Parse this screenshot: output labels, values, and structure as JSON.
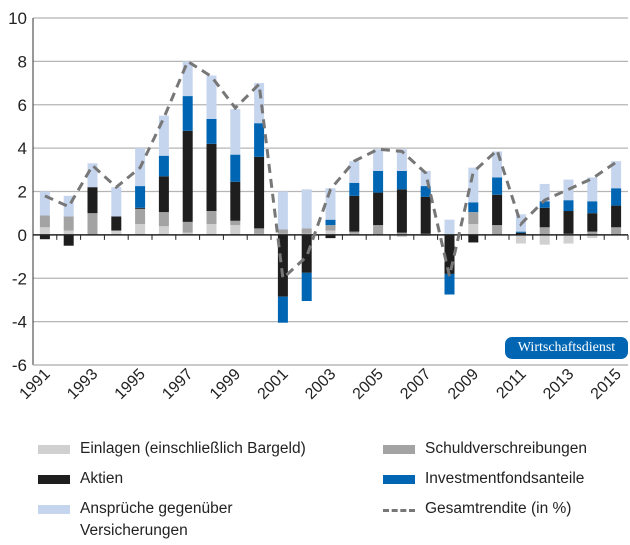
{
  "chart_data": {
    "type": "bar",
    "stacked": true,
    "categories": [
      "1991",
      "1992",
      "1993",
      "1994",
      "1995",
      "1996",
      "1997",
      "1998",
      "1999",
      "2000",
      "2001",
      "2002",
      "2003",
      "2004",
      "2005",
      "2006",
      "2007",
      "2008",
      "2009",
      "2010",
      "2011",
      "2012",
      "2013",
      "2014",
      "2015"
    ],
    "xtick_labels": [
      "1991",
      "1993",
      "1995",
      "1997",
      "1999",
      "2001",
      "2003",
      "2005",
      "2007",
      "2009",
      "2011",
      "2013",
      "2015"
    ],
    "ylim": [
      -6,
      10
    ],
    "yticks": [
      -6,
      -4,
      -2,
      0,
      2,
      4,
      6,
      8,
      10
    ],
    "grid": true,
    "legend_position": "bottom",
    "series": [
      {
        "name": "Einlagen (einschließlich Bargeld)",
        "color": "#d0d0d0",
        "values": [
          0.35,
          0.2,
          0,
          0.2,
          0.5,
          0.4,
          0.1,
          0.5,
          0.45,
          0.05,
          0.05,
          0.05,
          0.2,
          0.05,
          0,
          -0.1,
          -0.05,
          0,
          0.5,
          0,
          -0.4,
          -0.45,
          -0.4,
          -0.15,
          0
        ]
      },
      {
        "name": "Schuldverschreibungen",
        "color": "#a3a3a3",
        "values": [
          0.55,
          0.65,
          1.0,
          0,
          0.7,
          0.65,
          0.5,
          0.6,
          0.2,
          0.25,
          0.2,
          0.25,
          0.25,
          0.1,
          0.45,
          0.1,
          0.05,
          0,
          0.55,
          0.45,
          0,
          0.35,
          0.05,
          0.15,
          0.35
        ]
      },
      {
        "name": "Aktien",
        "color": "#1e1e1e",
        "values": [
          -0.2,
          -0.5,
          1.2,
          0.65,
          0.05,
          1.65,
          4.2,
          3.1,
          1.8,
          3.3,
          -2.85,
          -1.75,
          -0.15,
          1.65,
          1.5,
          2.0,
          1.7,
          -1.8,
          -0.35,
          1.4,
          0.1,
          0.9,
          1.05,
          0.85,
          1.0
        ]
      },
      {
        "name": "Investmentfondsanteile",
        "color": "#0066b3",
        "values": [
          0,
          0,
          0,
          0,
          1.0,
          0.95,
          1.6,
          1.15,
          1.25,
          1.55,
          -1.2,
          -1.3,
          0.25,
          0.6,
          1.0,
          0.85,
          0.5,
          -0.95,
          0.45,
          0.8,
          0.05,
          0.3,
          0.5,
          0.55,
          0.8
        ]
      },
      {
        "name": "Ansprüche gegenüber Versicherungen",
        "color": "#c6d5ee",
        "values": [
          1.1,
          0.95,
          1.1,
          1.35,
          1.75,
          1.85,
          1.6,
          2.0,
          2.1,
          1.85,
          1.75,
          1.8,
          1.45,
          1.0,
          1.0,
          1.0,
          0.7,
          0.7,
          1.6,
          1.2,
          0.8,
          0.8,
          0.95,
          1.1,
          1.25
        ]
      }
    ],
    "line": {
      "name": "Gesamtrendite (in %)",
      "color": "#777777",
      "style": "dashed",
      "values": [
        1.8,
        1.3,
        3.2,
        2.2,
        3.1,
        5.4,
        8.0,
        7.3,
        5.85,
        6.95,
        -2.0,
        -1.0,
        2.1,
        3.4,
        3.95,
        3.85,
        2.85,
        -1.9,
        2.9,
        3.9,
        0.5,
        1.6,
        2.1,
        2.6,
        3.35
      ]
    }
  },
  "legend": {
    "einlagen": "Einlagen (einschließlich Bargeld)",
    "schuld": "Schuldverschreibungen",
    "aktien": "Aktien",
    "invest": "Investmentfondsanteile",
    "ansprueche_1": "Ansprüche gegenüber",
    "ansprueche_2": "Versicherungen",
    "gesamt": "Gesamtrendite (in %)"
  },
  "logo": "Wirtschaftsdienst"
}
